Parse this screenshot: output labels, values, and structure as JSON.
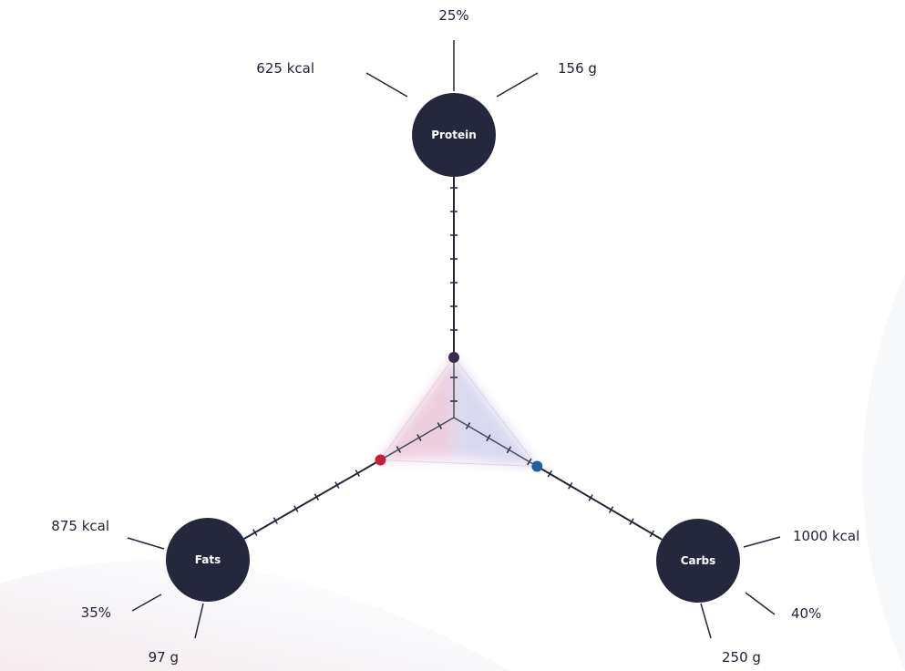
{
  "colors": {
    "node": "#25283d",
    "axis": "#232637",
    "protein_point": "#3a2a4f",
    "fats_point": "#c21f3a",
    "carbs_point": "#1f5fa8",
    "glow_red": "#e8899a",
    "glow_blue": "#9ab4e0",
    "glow_purple": "#c9a8d8"
  },
  "nutrients": [
    {
      "name": "Protein",
      "kcal": "625 kcal",
      "grams": "156 g",
      "percent": "25%",
      "value": 25
    },
    {
      "name": "Carbs",
      "kcal": "1000 kcal",
      "grams": "250 g",
      "percent": "40%",
      "value": 40
    },
    {
      "name": "Fats",
      "kcal": "875 kcal",
      "grams": "97 g",
      "percent": "35%",
      "value": 35
    }
  ]
}
